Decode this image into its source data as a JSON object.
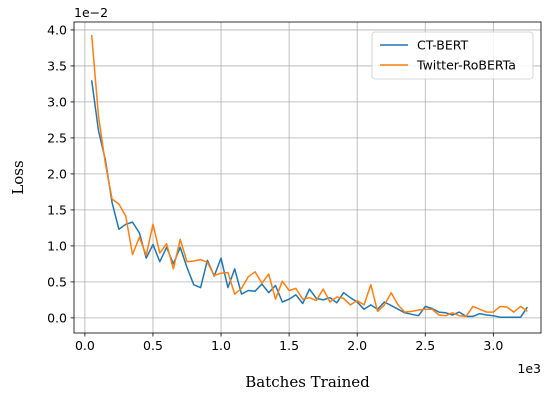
{
  "chart_data": {
    "type": "line",
    "xlabel": "Batches Trained",
    "ylabel": "Loss",
    "x_offset_label": "1e3",
    "y_offset_label": "1e−2",
    "xlim": [
      -80,
      3350
    ],
    "ylim": [
      -0.0021,
      0.0411
    ],
    "x_ticks": [
      0,
      500,
      1000,
      1500,
      2000,
      2500,
      3000
    ],
    "x_tick_labels": [
      "0.0",
      "0.5",
      "1.0",
      "1.5",
      "2.0",
      "2.5",
      "3.0"
    ],
    "y_ticks": [
      0,
      0.005,
      0.01,
      0.015,
      0.02,
      0.025,
      0.03,
      0.035,
      0.04
    ],
    "y_tick_labels": [
      "0.0",
      "0.5",
      "1.0",
      "1.5",
      "2.0",
      "2.5",
      "3.0",
      "3.5",
      "4.0"
    ],
    "grid": true,
    "legend_position": "top-right",
    "series": [
      {
        "name": "CT-BERT",
        "color": "#1f77b4",
        "x": [
          50,
          100,
          150,
          200,
          250,
          300,
          350,
          400,
          450,
          500,
          550,
          600,
          650,
          700,
          750,
          800,
          850,
          900,
          950,
          1000,
          1050,
          1100,
          1150,
          1200,
          1250,
          1300,
          1350,
          1400,
          1450,
          1500,
          1550,
          1600,
          1650,
          1700,
          1750,
          1800,
          1850,
          1900,
          1950,
          2000,
          2050,
          2100,
          2150,
          2200,
          2250,
          2300,
          2350,
          2400,
          2450,
          2500,
          2550,
          2600,
          2650,
          2700,
          2750,
          2800,
          2850,
          2900,
          2950,
          3000,
          3050,
          3100,
          3150,
          3200,
          3250
        ],
        "y": [
          0.033,
          0.026,
          0.022,
          0.016,
          0.0123,
          0.013,
          0.0133,
          0.0118,
          0.0083,
          0.0102,
          0.0078,
          0.0098,
          0.0075,
          0.0098,
          0.007,
          0.0046,
          0.0042,
          0.008,
          0.0058,
          0.0083,
          0.0042,
          0.0068,
          0.0033,
          0.0038,
          0.0037,
          0.0047,
          0.0035,
          0.0045,
          0.0022,
          0.0026,
          0.0032,
          0.002,
          0.004,
          0.0027,
          0.0025,
          0.0028,
          0.0021,
          0.0035,
          0.0028,
          0.0022,
          0.0012,
          0.0018,
          0.0012,
          0.0022,
          0.0017,
          0.0012,
          0.0007,
          0.0005,
          0.0003,
          0.0016,
          0.0013,
          0.0008,
          0.0007,
          0.0004,
          0.0008,
          0.0002,
          0.0002,
          0.0006,
          0.0004,
          0.0003,
          0.0001,
          0.0001,
          0.0001,
          0.0001,
          0.0015
        ]
      },
      {
        "name": "Twitter-RoBERTa",
        "color": "#ff7f0e",
        "x": [
          50,
          100,
          150,
          200,
          250,
          300,
          350,
          400,
          450,
          500,
          550,
          600,
          650,
          700,
          750,
          800,
          850,
          900,
          950,
          1000,
          1050,
          1100,
          1150,
          1200,
          1250,
          1300,
          1350,
          1400,
          1450,
          1500,
          1550,
          1600,
          1650,
          1700,
          1750,
          1800,
          1850,
          1900,
          1950,
          2000,
          2050,
          2100,
          2150,
          2200,
          2250,
          2300,
          2350,
          2400,
          2450,
          2500,
          2550,
          2600,
          2650,
          2700,
          2750,
          2800,
          2850,
          2900,
          2950,
          3000,
          3050,
          3100,
          3150,
          3200,
          3250
        ],
        "y": [
          0.0393,
          0.028,
          0.0215,
          0.0165,
          0.0158,
          0.0142,
          0.0088,
          0.0112,
          0.0087,
          0.013,
          0.009,
          0.0103,
          0.0068,
          0.0109,
          0.0078,
          0.0079,
          0.0081,
          0.0077,
          0.0059,
          0.0062,
          0.0063,
          0.0033,
          0.0041,
          0.0057,
          0.0064,
          0.0048,
          0.0061,
          0.0026,
          0.0051,
          0.0038,
          0.0041,
          0.0026,
          0.0028,
          0.0024,
          0.004,
          0.0022,
          0.0029,
          0.0027,
          0.0018,
          0.0024,
          0.0018,
          0.0046,
          0.0009,
          0.0018,
          0.0035,
          0.0018,
          0.0008,
          0.0009,
          0.0011,
          0.0012,
          0.0012,
          0.0004,
          0.0003,
          0.0007,
          0.0003,
          0.0002,
          0.0016,
          0.0012,
          0.0008,
          0.0008,
          0.0016,
          0.0015,
          0.0008,
          0.0016,
          0.0009
        ]
      }
    ]
  }
}
